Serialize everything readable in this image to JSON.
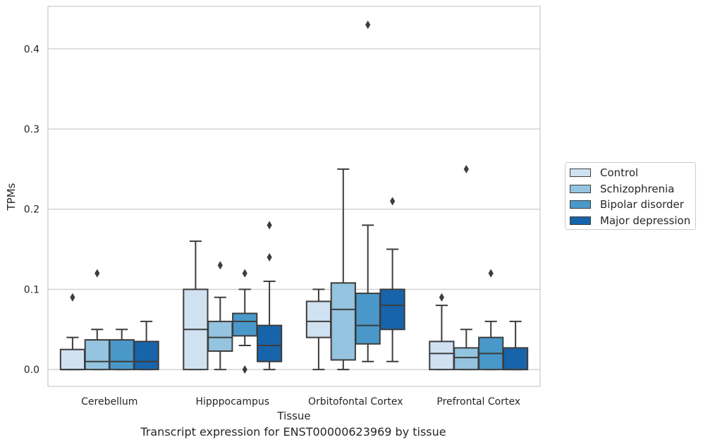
{
  "chart_data": {
    "type": "box",
    "ylabel": "TPMs",
    "xlabel": "Tissue",
    "caption": "Transcript expression for ENST00000623969 by tissue",
    "ylim": [
      -0.021,
      0.453
    ],
    "yticks": [
      "0.0",
      "0.1",
      "0.2",
      "0.3",
      "0.4"
    ],
    "ytick_values": [
      0,
      0.1,
      0.2,
      0.3,
      0.4
    ],
    "grid": true,
    "legend_position": "right",
    "categories": [
      "Cerebellum",
      "Hipppocampus",
      "Orbitofontal Cortex",
      "Prefrontal Cortex"
    ],
    "series": [
      {
        "name": "Control",
        "color": "#d0e1f2",
        "boxes": [
          {
            "whislo": 0,
            "q1": 0,
            "med": 0,
            "q3": 0.025,
            "whishi": 0.04,
            "fliers": [
              0.09
            ]
          },
          {
            "whislo": 0,
            "q1": 0,
            "med": 0.05,
            "q3": 0.1,
            "whishi": 0.16,
            "fliers": []
          },
          {
            "whislo": 0,
            "q1": 0.04,
            "med": 0.06,
            "q3": 0.085,
            "whishi": 0.1,
            "fliers": []
          },
          {
            "whislo": 0,
            "q1": 0,
            "med": 0.02,
            "q3": 0.035,
            "whishi": 0.08,
            "fliers": [
              0.09
            ]
          }
        ]
      },
      {
        "name": "Schizophrenia",
        "color": "#94c4df",
        "boxes": [
          {
            "whislo": 0,
            "q1": 0,
            "med": 0.01,
            "q3": 0.037,
            "whishi": 0.05,
            "fliers": [
              0.12
            ]
          },
          {
            "whislo": 0,
            "q1": 0.023,
            "med": 0.04,
            "q3": 0.06,
            "whishi": 0.09,
            "fliers": [
              0.13
            ]
          },
          {
            "whislo": 0,
            "q1": 0.012,
            "med": 0.075,
            "q3": 0.108,
            "whishi": 0.25,
            "fliers": []
          },
          {
            "whislo": 0,
            "q1": 0,
            "med": 0.015,
            "q3": 0.027,
            "whishi": 0.05,
            "fliers": [
              0.25
            ]
          }
        ]
      },
      {
        "name": "Bipolar disorder",
        "color": "#4a98c9",
        "boxes": [
          {
            "whislo": 0,
            "q1": 0,
            "med": 0.01,
            "q3": 0.037,
            "whishi": 0.05,
            "fliers": []
          },
          {
            "whislo": 0.03,
            "q1": 0.042,
            "med": 0.06,
            "q3": 0.07,
            "whishi": 0.1,
            "fliers": [
              0.12,
              0.0
            ]
          },
          {
            "whislo": 0.01,
            "q1": 0.032,
            "med": 0.055,
            "q3": 0.095,
            "whishi": 0.18,
            "fliers": [
              0.43
            ]
          },
          {
            "whislo": 0,
            "q1": 0,
            "med": 0.02,
            "q3": 0.04,
            "whishi": 0.06,
            "fliers": [
              0.12
            ]
          }
        ]
      },
      {
        "name": "Major depression",
        "color": "#1764ab",
        "boxes": [
          {
            "whislo": 0,
            "q1": 0,
            "med": 0.01,
            "q3": 0.035,
            "whishi": 0.06,
            "fliers": []
          },
          {
            "whislo": 0,
            "q1": 0.01,
            "med": 0.03,
            "q3": 0.055,
            "whishi": 0.11,
            "fliers": [
              0.14,
              0.18
            ]
          },
          {
            "whislo": 0.01,
            "q1": 0.05,
            "med": 0.08,
            "q3": 0.1,
            "whishi": 0.15,
            "fliers": [
              0.21
            ]
          },
          {
            "whislo": 0,
            "q1": 0,
            "med": 0,
            "q3": 0.027,
            "whishi": 0.06,
            "fliers": []
          }
        ]
      }
    ]
  }
}
